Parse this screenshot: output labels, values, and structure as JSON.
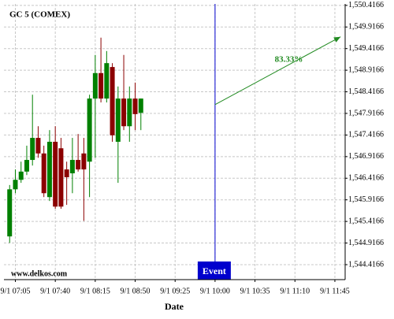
{
  "chart_data": {
    "type": "candlestick",
    "title": "GC 5 (COMEX)",
    "xlabel": "Date",
    "watermark": "www.delkos.com",
    "x": [
      "9/1 07:00",
      "9/1 07:05",
      "9/1 07:10",
      "9/1 07:15",
      "9/1 07:20",
      "9/1 07:25",
      "9/1 07:30",
      "9/1 07:35",
      "9/1 07:40",
      "9/1 07:45",
      "9/1 07:50",
      "9/1 07:55",
      "9/1 08:00",
      "9/1 08:05",
      "9/1 08:10",
      "9/1 08:15",
      "9/1 08:20",
      "9/1 08:25",
      "9/1 08:30",
      "9/1 08:35",
      "9/1 08:40",
      "9/1 08:45",
      "9/1 08:50",
      "9/1 08:55"
    ],
    "open": [
      1545.07,
      1546.16,
      1546.38,
      1546.57,
      1546.84,
      1547.35,
      1546.99,
      1545.98,
      1547.26,
      1547.11,
      1546.62,
      1546.53,
      1546.84,
      1546.99,
      1546.8,
      1548.26,
      1548.85,
      1548.26,
      1548.99,
      1547.26,
      1548.26,
      1547.62,
      1548.26,
      1547.93
    ],
    "high": [
      1546.26,
      1546.62,
      1546.8,
      1547.17,
      1548.35,
      1547.62,
      1547.17,
      1547.53,
      1547.62,
      1547.35,
      1546.8,
      1547.35,
      1547.44,
      1547.35,
      1548.35,
      1549.27,
      1549.67,
      1549.36,
      1549.08,
      1548.54,
      1549.27,
      1548.54,
      1548.63,
      1548.26
    ],
    "low": [
      1544.92,
      1546.07,
      1546.31,
      1546.49,
      1546.71,
      1546.89,
      1545.98,
      1545.89,
      1545.71,
      1545.71,
      1545.8,
      1546.07,
      1546.57,
      1545.43,
      1545.98,
      1546.89,
      1548.17,
      1548.17,
      1547.26,
      1546.31,
      1547.53,
      1547.26,
      1547.53,
      1547.53
    ],
    "close": [
      1546.16,
      1546.38,
      1546.57,
      1546.84,
      1547.35,
      1546.99,
      1546.07,
      1547.26,
      1545.76,
      1545.76,
      1546.44,
      1546.84,
      1546.62,
      1546.62,
      1548.26,
      1548.85,
      1548.26,
      1549.08,
      1547.41,
      1548.26,
      1547.62,
      1548.26,
      1547.9,
      1548.26
    ],
    "up_color": "#008000",
    "down_color": "#8b0000",
    "xlim": [
      "9/1 06:55",
      "9/1 11:54"
    ],
    "xticks": [
      "9/1 07:05",
      "9/1 07:40",
      "9/1 08:15",
      "9/1 08:50",
      "9/1 09:25",
      "9/1 10:00",
      "9/1 10:35",
      "9/1 11:10",
      "9/1 11:45"
    ],
    "ylim": [
      1544.07,
      1550.45
    ],
    "yticks": [
      {
        "value": 1544.4166,
        "label": "1,544.4166"
      },
      {
        "value": 1544.9166,
        "label": "1,544.9166"
      },
      {
        "value": 1545.4166,
        "label": "1,545.4166"
      },
      {
        "value": 1545.9166,
        "label": "1,545.9166"
      },
      {
        "value": 1546.4166,
        "label": "1,546.4166"
      },
      {
        "value": 1546.9166,
        "label": "1,546.9166"
      },
      {
        "value": 1547.4166,
        "label": "1,547.4166"
      },
      {
        "value": 1547.9166,
        "label": "1,547.9166"
      },
      {
        "value": 1548.4166,
        "label": "1,548.4166"
      },
      {
        "value": 1548.9166,
        "label": "1,548.9166"
      },
      {
        "value": 1549.4166,
        "label": "1,549.4166"
      },
      {
        "value": 1549.9166,
        "label": "1,549.9166"
      },
      {
        "value": 1550.4166,
        "label": "1,550.4166"
      }
    ],
    "grid": true,
    "event": {
      "x": "9/1 10:00",
      "label": "Event",
      "color": "#0000cd"
    },
    "forecast": {
      "label": "83.33%",
      "color": "#228b22",
      "from": {
        "x": "9/1 10:00",
        "y": 1548.12
      },
      "to": {
        "x": "9/1 11:50",
        "y": 1549.69
      }
    }
  }
}
